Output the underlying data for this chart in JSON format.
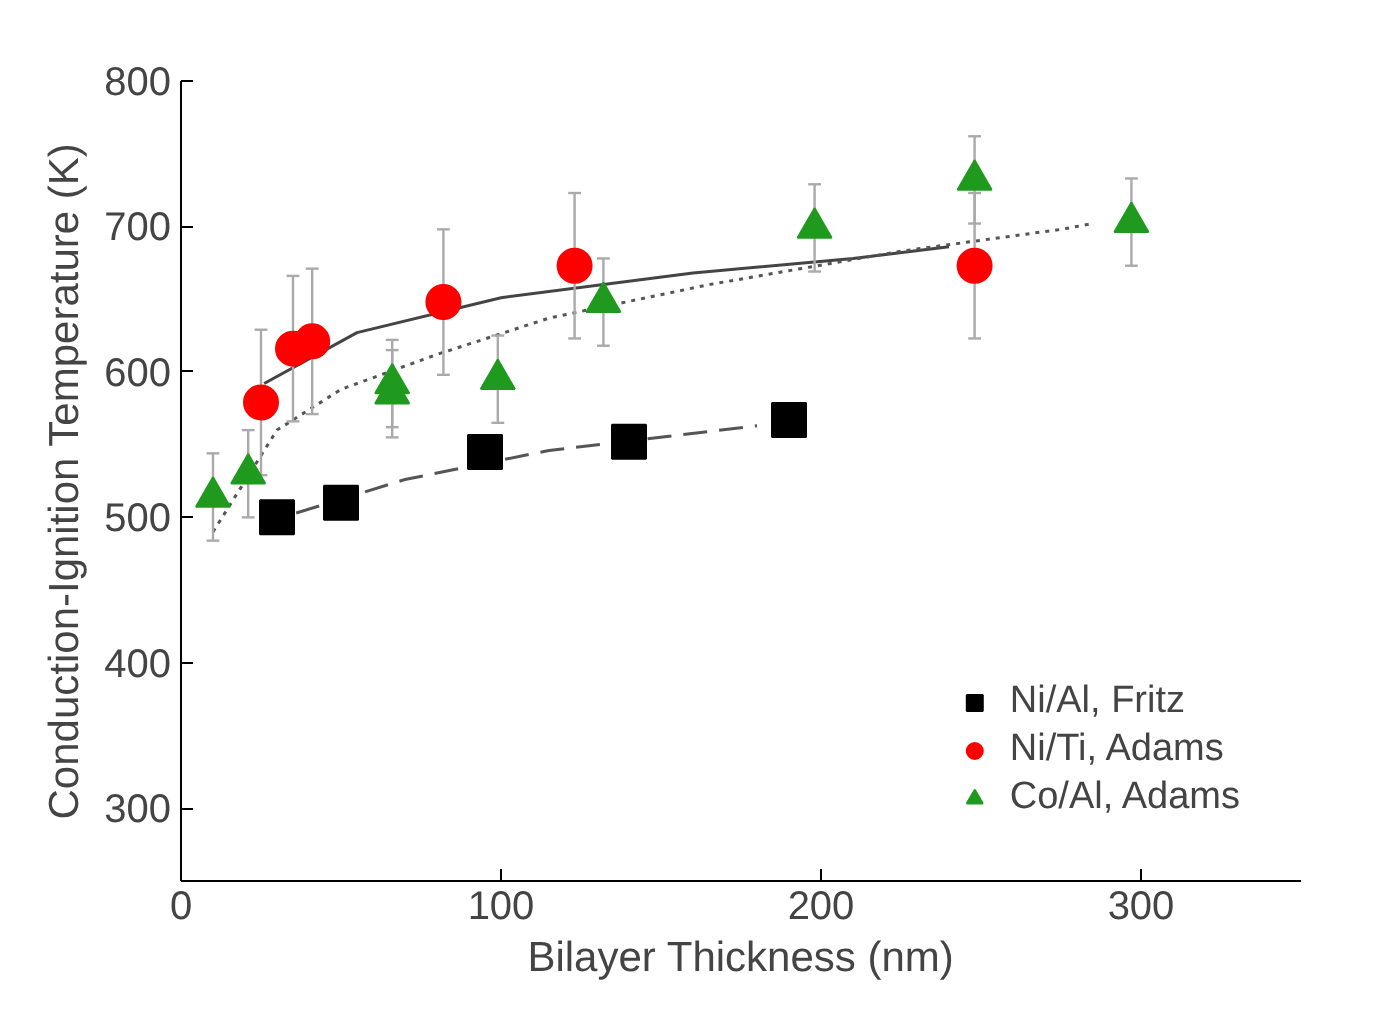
{
  "chart_data": {
    "type": "scatter",
    "xlabel": "Bilayer Thickness (nm)",
    "ylabel": "Conduction-Ignition Temperature (K)",
    "xlim": [
      0,
      350
    ],
    "ylim": [
      250,
      800
    ],
    "xticks": [
      0,
      100,
      200,
      300
    ],
    "yticks": [
      300,
      400,
      500,
      600,
      700,
      800
    ],
    "grid": false,
    "legend": "bottom right",
    "series": [
      {
        "name": "Ni/Al, Fritz",
        "color": "#000000",
        "marker": "square",
        "x": [
          30,
          50,
          95,
          140,
          190
        ],
        "values": [
          500,
          510,
          545,
          552,
          567
        ]
      },
      {
        "name": "Ni/Ti, Adams",
        "color": "#ff0000",
        "marker": "circle",
        "x": [
          25,
          35,
          41,
          82,
          123,
          248
        ],
        "values": [
          579,
          616,
          621,
          648,
          673,
          673
        ],
        "errors": [
          50,
          50,
          50,
          50,
          50,
          50
        ]
      },
      {
        "name": "Co/Al, Adams",
        "color": "#1f9a1f",
        "marker": "triangle",
        "x": [
          10,
          21,
          66,
          66,
          99,
          132,
          198,
          248,
          297
        ],
        "values": [
          514,
          530,
          592,
          585,
          595,
          648,
          699,
          732,
          703
        ],
        "errors": [
          30,
          30,
          30,
          30,
          30,
          30,
          30,
          30,
          30
        ]
      },
      {
        "type": "line",
        "color": "#555555",
        "line_style": "dashed",
        "x": [
          36,
          70,
          115,
          165,
          180
        ],
        "values": [
          503,
          526,
          546,
          559,
          563
        ]
      },
      {
        "type": "line",
        "color": "#444444",
        "line_style": "solid",
        "x": [
          26,
          55,
          100,
          160,
          210,
          240
        ],
        "values": [
          592,
          627,
          651,
          668,
          678,
          686
        ]
      },
      {
        "type": "line",
        "color": "#555555",
        "line_style": "dotted",
        "x": [
          10,
          30,
          50,
          80,
          115,
          165,
          225,
          275,
          285
        ],
        "values": [
          490,
          560,
          588,
          612,
          637,
          660,
          683,
          698,
          702
        ]
      }
    ]
  }
}
